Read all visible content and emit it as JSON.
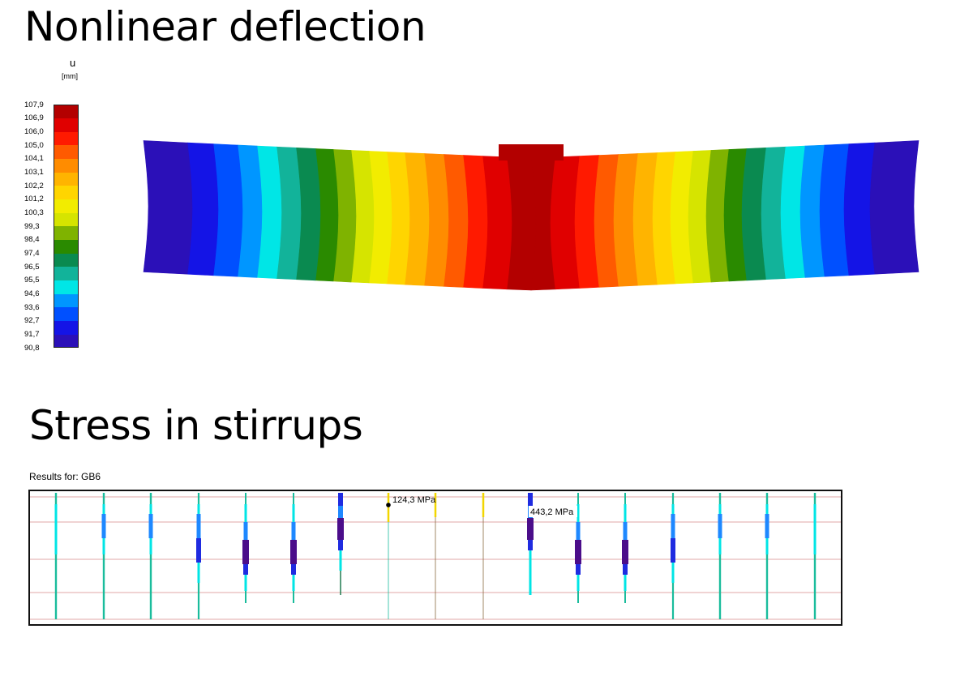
{
  "deflection": {
    "title": "Nonlinear deflection",
    "legend": {
      "variable": "u",
      "unit": "[mm]",
      "values": [
        "107,9",
        "106,9",
        "106,0",
        "105,0",
        "104,1",
        "103,1",
        "102,2",
        "101,2",
        "100,3",
        "99,3",
        "98,4",
        "97,4",
        "96,5",
        "95,5",
        "94,6",
        "93,6",
        "92,7",
        "91,7",
        "90,8"
      ],
      "colors": [
        "#b30000",
        "#e00000",
        "#ff1a00",
        "#ff5a00",
        "#ff8c00",
        "#ffb400",
        "#ffd500",
        "#f2ec00",
        "#d6e400",
        "#7fb300",
        "#2a8a00",
        "#0a8a50",
        "#12b39a",
        "#00e6e6",
        "#0096ff",
        "#0050ff",
        "#1414e6",
        "#2b10b8",
        "#4b0082"
      ]
    }
  },
  "stirrups": {
    "title": "Stress in stirrups",
    "results_for": "Results for: GB6",
    "annotations": {
      "min": "124,3 MPa",
      "max": "443,2 MPa"
    }
  }
}
